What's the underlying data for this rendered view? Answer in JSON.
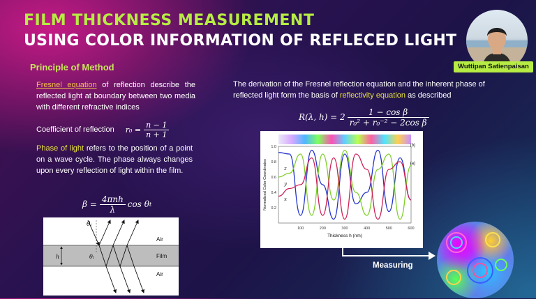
{
  "header": {
    "title_line1": "FILM THICKNESS MEASUREMENT",
    "title_line2": "USING COLOR INFORMATION OF REFLECED LIGHT",
    "presenter_name": "Wuttipan Satienpaisan"
  },
  "left": {
    "section_title": "Principle of Method",
    "fresnel_term": "Fresnel equation",
    "fresnel_text": " of reflection describe the reflected light at boundary between two media with different refractive indices",
    "coefficient_label": "Coefficient of reflection",
    "r0_lhs": "r₀ =",
    "r0_num": "n − 1",
    "r0_den": "n + 1",
    "phase_term": "Phase of light",
    "phase_text": " refers to the position of a point on a wave cycle. The phase always changes upon every reflection of light within the film.",
    "beta_lhs": "β =",
    "beta_num": "4πnh",
    "beta_den": "λ",
    "beta_rhs": "cos θ",
    "beta_rhs_sub": "t"
  },
  "right": {
    "derivation_text_1": "The derivation of the Fresnel reflection equation and the inherent phase of reflected light form the basis of ",
    "derivation_term": "reflectivity equation",
    "derivation_text_2": " as described",
    "R_lhs": "R(λ, h) = 2",
    "R_num": "1 − cos β",
    "R_den": "r₀² + r₀⁻² − 2cos β"
  },
  "film_diagram": {
    "theta_top": "θᵢ",
    "air_top": "Air",
    "film_label": "Film",
    "h_label": "h",
    "theta_film": "θₜ",
    "air_bottom": "Air"
  },
  "measuring_label": "Measuring",
  "chart_data": {
    "type": "line",
    "panel_labels": [
      "(b)",
      "(a)"
    ],
    "ylabel": "Normalized Color Coordinates",
    "xlabel": "Thickness   h (nm)",
    "xlim": [
      0,
      600
    ],
    "ylim": [
      0,
      1.0
    ],
    "x_ticks": [
      "100",
      "200",
      "300",
      "400",
      "500",
      "600"
    ],
    "y_ticks": [
      "0.2",
      "0.4",
      "0.6",
      "0.8",
      "1.0"
    ],
    "series_labels": [
      "z",
      "y",
      "x"
    ],
    "x": [
      0,
      50,
      100,
      150,
      200,
      250,
      300,
      350,
      400,
      450,
      500,
      550,
      600
    ],
    "series": [
      {
        "name": "z",
        "color": "#2233cc",
        "values": [
          0.92,
          0.9,
          0.1,
          0.95,
          0.5,
          0.05,
          0.9,
          0.25,
          0.4,
          0.95,
          0.15,
          0.85,
          0.3
        ]
      },
      {
        "name": "y",
        "color": "#7ecf29",
        "values": [
          0.6,
          0.65,
          0.9,
          0.1,
          0.9,
          0.3,
          0.95,
          0.4,
          0.1,
          0.7,
          0.9,
          0.05,
          0.75
        ]
      },
      {
        "name": "x",
        "color": "#cc2255",
        "values": [
          0.35,
          0.45,
          0.5,
          0.85,
          0.1,
          0.85,
          0.05,
          0.9,
          0.7,
          0.05,
          0.7,
          0.8,
          0.3
        ]
      }
    ],
    "series_colors": {
      "z": "#2233cc",
      "y": "#7ecf29",
      "x": "#cc2255"
    }
  }
}
